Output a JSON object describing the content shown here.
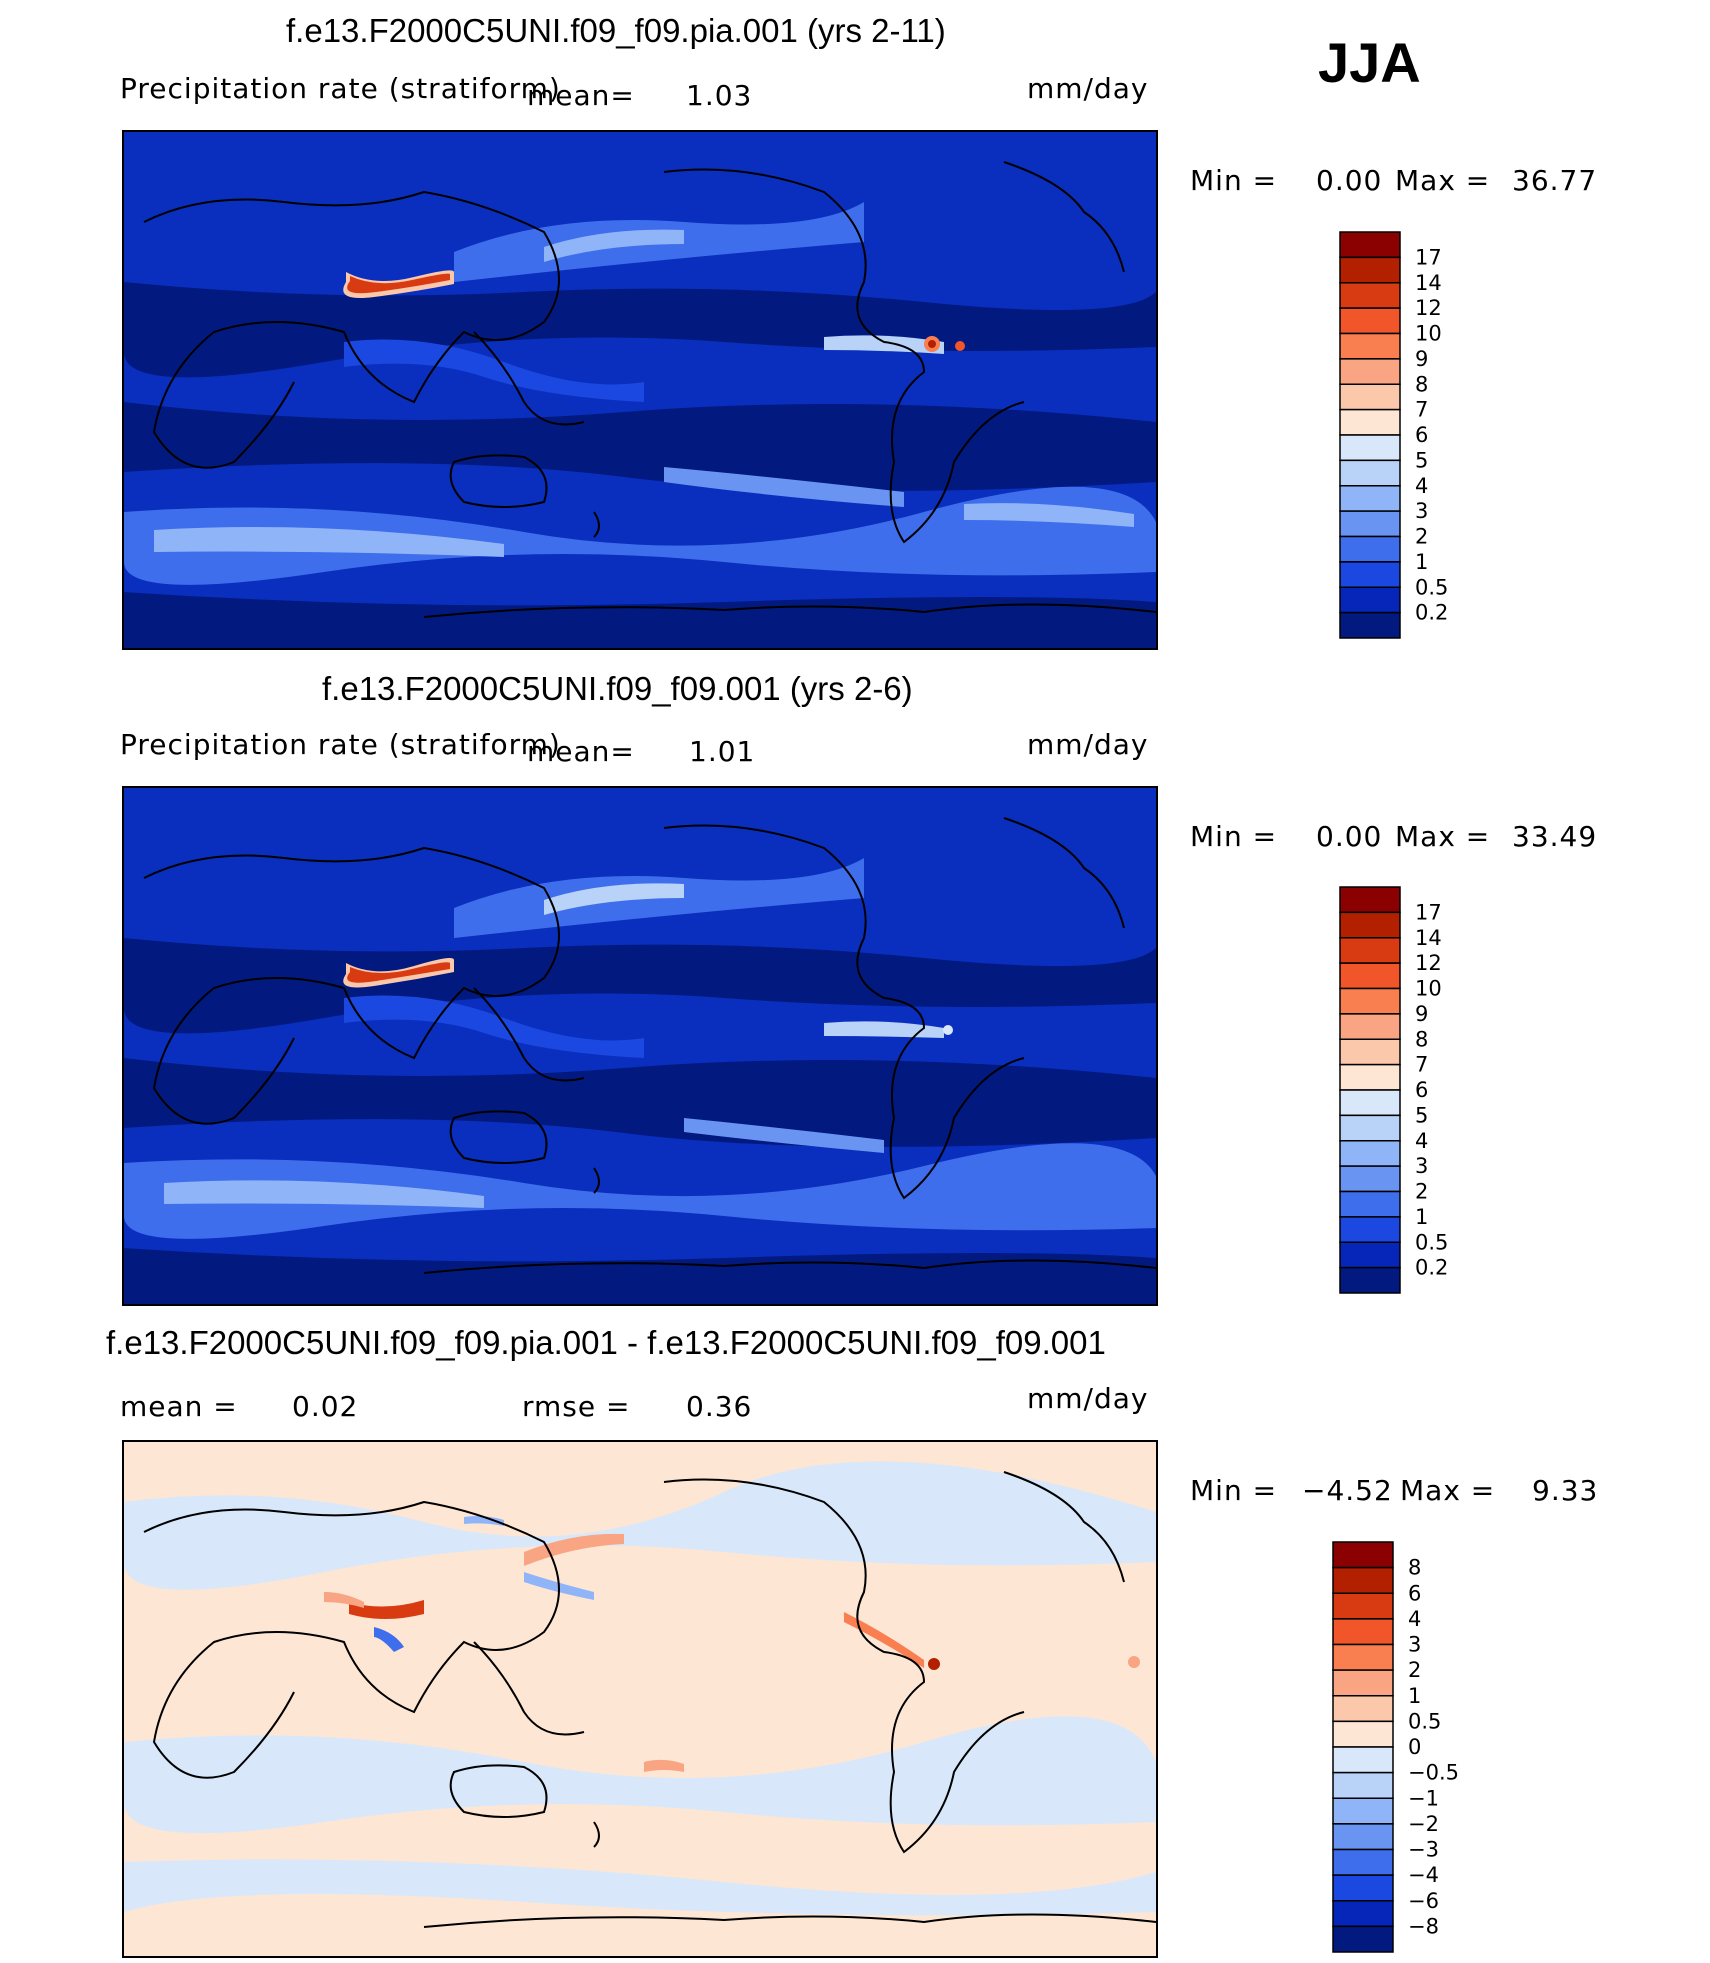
{
  "season": "JJA",
  "panels": [
    {
      "title": "f.e13.F2000C5UNI.f09_f09.pia.001 (yrs 2-11)",
      "variable": "Precipitation rate (stratiform)",
      "mean_label": "mean=",
      "mean_value": "1.03",
      "units": "mm/day",
      "min_label": "Min =",
      "min_value": "0.00",
      "max_label": "Max =",
      "max_value": "36.77",
      "colorbar_ticks": [
        "17",
        "14",
        "12",
        "10",
        "9",
        "8",
        "7",
        "6",
        "5",
        "4",
        "3",
        "2",
        "1",
        "0.5",
        "0.2"
      ],
      "colorbar_colors": [
        "#8b0000",
        "#b22000",
        "#d83a12",
        "#f0562a",
        "#f97e50",
        "#f9a482",
        "#fbc8ac",
        "#fde6d4",
        "#d8e8fa",
        "#b8d2f8",
        "#90b4f8",
        "#6a94f2",
        "#3f6eec",
        "#1a48e0",
        "#0526b8",
        "#021a80"
      ]
    },
    {
      "title": "f.e13.F2000C5UNI.f09_f09.001 (yrs 2-6)",
      "variable": "Precipitation rate (stratiform)",
      "mean_label": "mean=",
      "mean_value": "1.01",
      "units": "mm/day",
      "min_label": "Min =",
      "min_value": "0.00",
      "max_label": "Max =",
      "max_value": "33.49",
      "colorbar_ticks": [
        "17",
        "14",
        "12",
        "10",
        "9",
        "8",
        "7",
        "6",
        "5",
        "4",
        "3",
        "2",
        "1",
        "0.5",
        "0.2"
      ],
      "colorbar_colors": [
        "#8b0000",
        "#b22000",
        "#d83a12",
        "#f0562a",
        "#f97e50",
        "#f9a482",
        "#fbc8ac",
        "#fde6d4",
        "#d8e8fa",
        "#b8d2f8",
        "#90b4f8",
        "#6a94f2",
        "#3f6eec",
        "#1a48e0",
        "#0526b8",
        "#021a80"
      ]
    },
    {
      "title": "f.e13.F2000C5UNI.f09_f09.pia.001 - f.e13.F2000C5UNI.f09_f09.001",
      "mean_label": "mean =",
      "mean_value": "0.02",
      "rmse_label": "rmse =",
      "rmse_value": "0.36",
      "units": "mm/day",
      "min_label": "Min =",
      "min_value": "−4.52",
      "max_label": "Max =",
      "max_value": "9.33",
      "colorbar_ticks": [
        "8",
        "6",
        "4",
        "3",
        "2",
        "1",
        "0.5",
        "0",
        "−0.5",
        "−1",
        "−2",
        "−3",
        "−4",
        "−6",
        "−8"
      ],
      "colorbar_colors": [
        "#8b0000",
        "#b22000",
        "#d83a12",
        "#f0562a",
        "#f97e50",
        "#f9a482",
        "#fbc8ac",
        "#fde6d4",
        "#d8e8fa",
        "#b8d2f8",
        "#90b4f8",
        "#6a94f2",
        "#3f6eec",
        "#1a48e0",
        "#0526b8",
        "#021a80"
      ]
    }
  ],
  "chart_data": [
    {
      "type": "heatmap",
      "title": "f.e13.F2000C5UNI.f09_f09.pia.001 (yrs 2-11)",
      "variable": "Precipitation rate (stratiform)",
      "units": "mm/day",
      "season": "JJA",
      "mean": 1.03,
      "min": 0.0,
      "max": 36.77,
      "contour_levels": [
        0.2,
        0.5,
        1,
        2,
        3,
        4,
        5,
        6,
        7,
        8,
        9,
        10,
        12,
        14,
        17
      ]
    },
    {
      "type": "heatmap",
      "title": "f.e13.F2000C5UNI.f09_f09.001 (yrs 2-6)",
      "variable": "Precipitation rate (stratiform)",
      "units": "mm/day",
      "season": "JJA",
      "mean": 1.01,
      "min": 0.0,
      "max": 33.49,
      "contour_levels": [
        0.2,
        0.5,
        1,
        2,
        3,
        4,
        5,
        6,
        7,
        8,
        9,
        10,
        12,
        14,
        17
      ]
    },
    {
      "type": "heatmap",
      "title": "f.e13.F2000C5UNI.f09_f09.pia.001 - f.e13.F2000C5UNI.f09_f09.001",
      "units": "mm/day",
      "season": "JJA",
      "mean": 0.02,
      "rmse": 0.36,
      "min": -4.52,
      "max": 9.33,
      "contour_levels": [
        -8,
        -6,
        -4,
        -3,
        -2,
        -1,
        -0.5,
        0,
        0.5,
        1,
        2,
        3,
        4,
        6,
        8
      ]
    }
  ]
}
